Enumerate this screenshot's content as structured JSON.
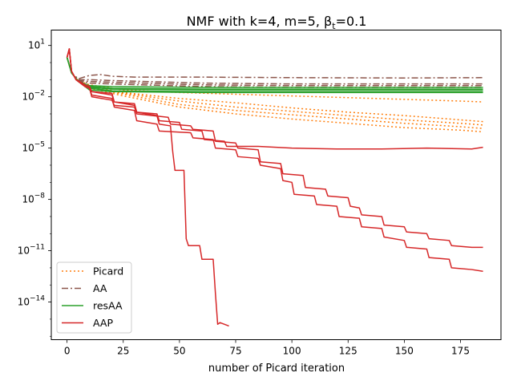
{
  "chart_data": {
    "type": "line",
    "title": "NMF with k=4, m=5,  β",
    "title_sub": "t",
    "title_suffix": "=0.1",
    "xlabel": "number of Picard iteration",
    "ylabel": "",
    "xlim": [
      -7,
      193
    ],
    "ylim_log10": [
      -16.2,
      1.9
    ],
    "yscale": "log",
    "grid": false,
    "legend_position": "lower-left",
    "x_ticks": [
      0,
      25,
      50,
      75,
      100,
      125,
      150,
      175
    ],
    "y_ticks": [
      {
        "exp": 1,
        "label": "10",
        "sup": "1"
      },
      {
        "exp": -2,
        "label": "10",
        "sup": "−2"
      },
      {
        "exp": -5,
        "label": "10",
        "sup": "−5"
      },
      {
        "exp": -8,
        "label": "10",
        "sup": "−8"
      },
      {
        "exp": -11,
        "label": "10",
        "sup": "−11"
      },
      {
        "exp": -14,
        "label": "10",
        "sup": "−14"
      }
    ],
    "legend": [
      {
        "label": "Picard",
        "color": "#ff7f0e",
        "dash": "2,3"
      },
      {
        "label": "AA",
        "color": "#8c564b",
        "dash": "8,3,2,3"
      },
      {
        "label": "resAA",
        "color": "#2ca02c",
        "dash": ""
      },
      {
        "label": "AAP",
        "color": "#d62728",
        "dash": ""
      }
    ],
    "series": [
      {
        "group": "Picard",
        "color": "#ff7f0e",
        "dash": "2,3",
        "points": [
          [
            0,
            0.3
          ],
          [
            2,
            -0.6
          ],
          [
            5,
            -1.1
          ],
          [
            10,
            -1.4
          ],
          [
            25,
            -1.75
          ],
          [
            50,
            -2.1
          ],
          [
            75,
            -2.35
          ],
          [
            100,
            -2.65
          ],
          [
            125,
            -2.9
          ],
          [
            150,
            -3.1
          ],
          [
            175,
            -3.35
          ],
          [
            185,
            -3.45
          ]
        ]
      },
      {
        "group": "Picard",
        "color": "#ff7f0e",
        "dash": "2,3",
        "points": [
          [
            0,
            0.3
          ],
          [
            2,
            -0.6
          ],
          [
            5,
            -1.1
          ],
          [
            10,
            -1.4
          ],
          [
            25,
            -1.8
          ],
          [
            50,
            -2.25
          ],
          [
            75,
            -2.6
          ],
          [
            100,
            -2.85
          ],
          [
            125,
            -3.1
          ],
          [
            150,
            -3.35
          ],
          [
            175,
            -3.55
          ],
          [
            185,
            -3.65
          ]
        ]
      },
      {
        "group": "Picard",
        "color": "#ff7f0e",
        "dash": "2,3",
        "points": [
          [
            0,
            0.3
          ],
          [
            2,
            -0.6
          ],
          [
            5,
            -1.1
          ],
          [
            10,
            -1.5
          ],
          [
            25,
            -1.85
          ],
          [
            50,
            -2.45
          ],
          [
            75,
            -2.8
          ],
          [
            100,
            -3.05
          ],
          [
            125,
            -3.3
          ],
          [
            150,
            -3.55
          ],
          [
            175,
            -3.75
          ],
          [
            185,
            -3.85
          ]
        ]
      },
      {
        "group": "Picard",
        "color": "#ff7f0e",
        "dash": "2,3",
        "points": [
          [
            0,
            0.3
          ],
          [
            2,
            -0.6
          ],
          [
            5,
            -1.1
          ],
          [
            10,
            -1.5
          ],
          [
            25,
            -1.95
          ],
          [
            50,
            -2.6
          ],
          [
            75,
            -3.0
          ],
          [
            100,
            -3.3
          ],
          [
            125,
            -3.55
          ],
          [
            150,
            -3.8
          ],
          [
            175,
            -3.95
          ],
          [
            185,
            -4.05
          ]
        ]
      },
      {
        "group": "Picard",
        "color": "#ff7f0e",
        "dash": "2,3",
        "points": [
          [
            0,
            0.3
          ],
          [
            2,
            -0.6
          ],
          [
            5,
            -1.05
          ],
          [
            10,
            -1.3
          ],
          [
            25,
            -1.6
          ],
          [
            50,
            -1.75
          ],
          [
            75,
            -1.85
          ],
          [
            100,
            -1.95
          ],
          [
            125,
            -2.05
          ],
          [
            150,
            -2.15
          ],
          [
            175,
            -2.25
          ],
          [
            185,
            -2.3
          ]
        ]
      },
      {
        "group": "AA",
        "color": "#8c564b",
        "dash": "8,3,2,3",
        "points": [
          [
            0,
            0.3
          ],
          [
            2,
            -0.6
          ],
          [
            5,
            -0.95
          ],
          [
            10,
            -0.75
          ],
          [
            15,
            -0.7
          ],
          [
            20,
            -0.8
          ],
          [
            30,
            -0.85
          ],
          [
            60,
            -0.85
          ],
          [
            100,
            -0.88
          ],
          [
            150,
            -0.9
          ],
          [
            185,
            -0.88
          ]
        ]
      },
      {
        "group": "AA",
        "color": "#8c564b",
        "dash": "8,3,2,3",
        "points": [
          [
            0,
            0.3
          ],
          [
            2,
            -0.6
          ],
          [
            5,
            -1.0
          ],
          [
            10,
            -1.0
          ],
          [
            20,
            -1.05
          ],
          [
            60,
            -1.2
          ],
          [
            100,
            -1.25
          ],
          [
            150,
            -1.25
          ],
          [
            185,
            -1.25
          ]
        ]
      },
      {
        "group": "AA",
        "color": "#8c564b",
        "dash": "8,3,2,3",
        "points": [
          [
            0,
            0.3
          ],
          [
            2,
            -0.6
          ],
          [
            5,
            -1.05
          ],
          [
            10,
            -1.1
          ],
          [
            20,
            -1.15
          ],
          [
            60,
            -1.3
          ],
          [
            100,
            -1.35
          ],
          [
            150,
            -1.35
          ],
          [
            185,
            -1.35
          ]
        ]
      },
      {
        "group": "AA",
        "color": "#8c564b",
        "dash": "8,3,2,3",
        "points": [
          [
            0,
            0.3
          ],
          [
            2,
            -0.6
          ],
          [
            5,
            -1.1
          ],
          [
            10,
            -1.2
          ],
          [
            20,
            -1.25
          ],
          [
            60,
            -1.4
          ],
          [
            100,
            -1.45
          ],
          [
            150,
            -1.45
          ],
          [
            185,
            -1.45
          ]
        ]
      },
      {
        "group": "resAA",
        "color": "#2ca02c",
        "dash": "",
        "points": [
          [
            0,
            0.3
          ],
          [
            2,
            -0.6
          ],
          [
            5,
            -1.1
          ],
          [
            10,
            -1.35
          ],
          [
            20,
            -1.4
          ],
          [
            60,
            -1.45
          ],
          [
            185,
            -1.45
          ]
        ]
      },
      {
        "group": "resAA",
        "color": "#2ca02c",
        "dash": "",
        "points": [
          [
            0,
            0.3
          ],
          [
            2,
            -0.6
          ],
          [
            5,
            -1.1
          ],
          [
            10,
            -1.4
          ],
          [
            20,
            -1.5
          ],
          [
            60,
            -1.55
          ],
          [
            185,
            -1.55
          ]
        ]
      },
      {
        "group": "resAA",
        "color": "#2ca02c",
        "dash": "",
        "points": [
          [
            0,
            0.3
          ],
          [
            2,
            -0.6
          ],
          [
            5,
            -1.1
          ],
          [
            10,
            -1.45
          ],
          [
            20,
            -1.55
          ],
          [
            60,
            -1.6
          ],
          [
            185,
            -1.6
          ]
        ]
      },
      {
        "group": "resAA",
        "color": "#2ca02c",
        "dash": "",
        "points": [
          [
            0,
            0.3
          ],
          [
            2,
            -0.6
          ],
          [
            5,
            -1.1
          ],
          [
            10,
            -1.5
          ],
          [
            20,
            -1.65
          ],
          [
            60,
            -1.7
          ],
          [
            185,
            -1.7
          ]
        ]
      },
      {
        "group": "resAA",
        "color": "#2ca02c",
        "dash": "",
        "points": [
          [
            0,
            0.3
          ],
          [
            2,
            -0.6
          ],
          [
            5,
            -1.1
          ],
          [
            10,
            -1.6
          ],
          [
            20,
            -1.7
          ],
          [
            60,
            -1.75
          ],
          [
            185,
            -1.75
          ]
        ]
      },
      {
        "group": "AAP",
        "color": "#d62728",
        "dash": "",
        "points": [
          [
            0,
            0.3
          ],
          [
            1,
            0.8
          ],
          [
            2,
            -0.5
          ],
          [
            4,
            -1.0
          ],
          [
            8,
            -1.3
          ],
          [
            10,
            -1.4
          ],
          [
            11,
            -1.7
          ],
          [
            20,
            -1.8
          ],
          [
            21,
            -2.3
          ],
          [
            30,
            -2.5
          ],
          [
            31,
            -2.9
          ],
          [
            40,
            -3.1
          ],
          [
            41,
            -3.6
          ],
          [
            46,
            -3.7
          ],
          [
            47,
            -5.2
          ],
          [
            48,
            -6.3
          ],
          [
            52,
            -6.3
          ],
          [
            53,
            -10.3
          ],
          [
            54,
            -10.7
          ],
          [
            59,
            -10.7
          ],
          [
            60,
            -11.5
          ],
          [
            65,
            -11.5
          ],
          [
            66,
            -13.5
          ],
          [
            67,
            -15.3
          ],
          [
            68,
            -15.2
          ],
          [
            70,
            -15.3
          ],
          [
            72,
            -15.4
          ]
        ]
      },
      {
        "group": "AAP",
        "color": "#d62728",
        "dash": "",
        "points": [
          [
            0,
            0.3
          ],
          [
            1,
            0.8
          ],
          [
            2,
            -0.5
          ],
          [
            4,
            -1.0
          ],
          [
            8,
            -1.4
          ],
          [
            10,
            -1.5
          ],
          [
            11,
            -1.9
          ],
          [
            20,
            -2.1
          ],
          [
            21,
            -2.6
          ],
          [
            30,
            -2.8
          ],
          [
            31,
            -3.4
          ],
          [
            40,
            -3.6
          ],
          [
            41,
            -4.0
          ],
          [
            55,
            -4.1
          ],
          [
            56,
            -4.4
          ],
          [
            65,
            -4.5
          ],
          [
            66,
            -5.0
          ],
          [
            75,
            -5.1
          ],
          [
            76,
            -5.5
          ],
          [
            85,
            -5.6
          ],
          [
            86,
            -6.0
          ],
          [
            95,
            -6.2
          ],
          [
            96,
            -6.9
          ],
          [
            100,
            -7.0
          ],
          [
            101,
            -7.7
          ],
          [
            110,
            -7.8
          ],
          [
            111,
            -8.3
          ],
          [
            120,
            -8.4
          ],
          [
            121,
            -9.0
          ],
          [
            130,
            -9.1
          ],
          [
            131,
            -9.6
          ],
          [
            140,
            -9.7
          ],
          [
            141,
            -10.2
          ],
          [
            150,
            -10.4
          ],
          [
            151,
            -10.8
          ],
          [
            160,
            -10.9
          ],
          [
            161,
            -11.4
          ],
          [
            170,
            -11.5
          ],
          [
            171,
            -12.0
          ],
          [
            180,
            -12.1
          ],
          [
            185,
            -12.2
          ]
        ]
      },
      {
        "group": "AAP",
        "color": "#d62728",
        "dash": "",
        "points": [
          [
            0,
            0.3
          ],
          [
            1,
            0.8
          ],
          [
            2,
            -0.5
          ],
          [
            4,
            -1.0
          ],
          [
            8,
            -1.4
          ],
          [
            10,
            -1.5
          ],
          [
            11,
            -2.0
          ],
          [
            20,
            -2.2
          ],
          [
            21,
            -2.5
          ],
          [
            30,
            -2.6
          ],
          [
            31,
            -3.0
          ],
          [
            45,
            -3.2
          ],
          [
            46,
            -3.6
          ],
          [
            55,
            -3.7
          ],
          [
            56,
            -3.9
          ],
          [
            65,
            -4.0
          ],
          [
            66,
            -4.6
          ],
          [
            75,
            -4.7
          ],
          [
            76,
            -5.0
          ],
          [
            85,
            -5.1
          ],
          [
            86,
            -5.8
          ],
          [
            95,
            -5.9
          ],
          [
            96,
            -6.5
          ],
          [
            105,
            -6.6
          ],
          [
            106,
            -7.3
          ],
          [
            115,
            -7.4
          ],
          [
            116,
            -7.8
          ],
          [
            125,
            -7.9
          ],
          [
            126,
            -8.4
          ],
          [
            130,
            -8.5
          ],
          [
            131,
            -8.9
          ],
          [
            140,
            -9.0
          ],
          [
            141,
            -9.5
          ],
          [
            150,
            -9.6
          ],
          [
            151,
            -9.9
          ],
          [
            160,
            -10.0
          ],
          [
            161,
            -10.3
          ],
          [
            170,
            -10.4
          ],
          [
            171,
            -10.7
          ],
          [
            180,
            -10.8
          ],
          [
            185,
            -10.8
          ]
        ]
      },
      {
        "group": "AAP",
        "color": "#d62728",
        "dash": "",
        "points": [
          [
            0,
            0.3
          ],
          [
            1,
            0.8
          ],
          [
            2,
            -0.5
          ],
          [
            4,
            -1.0
          ],
          [
            8,
            -1.3
          ],
          [
            10,
            -1.4
          ],
          [
            11,
            -1.7
          ],
          [
            20,
            -1.9
          ],
          [
            21,
            -2.3
          ],
          [
            30,
            -2.4
          ],
          [
            31,
            -2.9
          ],
          [
            40,
            -3.0
          ],
          [
            41,
            -3.4
          ],
          [
            50,
            -3.5
          ],
          [
            51,
            -3.9
          ],
          [
            60,
            -4.0
          ],
          [
            61,
            -4.5
          ],
          [
            70,
            -4.6
          ],
          [
            71,
            -4.9
          ],
          [
            85,
            -4.9
          ],
          [
            100,
            -5.0
          ],
          [
            120,
            -5.05
          ],
          [
            140,
            -5.05
          ],
          [
            160,
            -5.0
          ],
          [
            180,
            -5.05
          ],
          [
            185,
            -4.95
          ]
        ]
      }
    ]
  }
}
